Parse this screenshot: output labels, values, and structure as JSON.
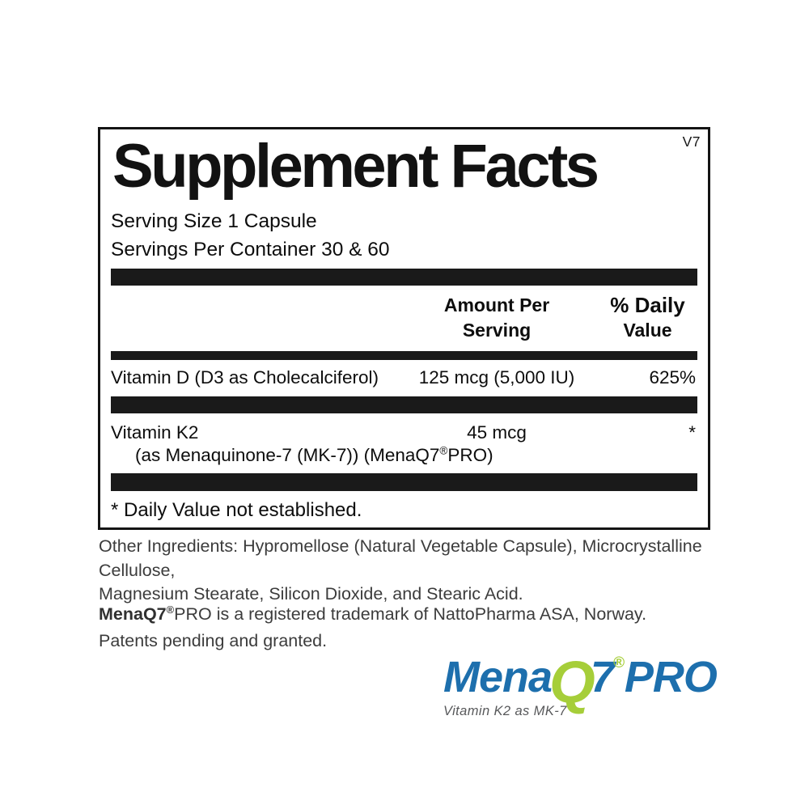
{
  "panel": {
    "version": "V7",
    "title": "Supplement Facts",
    "serving_size": "Serving Size 1 Capsule",
    "servings_per_container": "Servings Per Container 30 & 60",
    "bar_color": "#1a1a1a",
    "columns": {
      "amount_line1": "Amount Per",
      "amount_line2": "Serving",
      "dv_line1": "% Daily",
      "dv_line2": "Value"
    },
    "rows": [
      {
        "name": "Vitamin D (D3 as Cholecalciferol)",
        "amount": "125 mcg (5,000 IU)",
        "dv": "625%"
      },
      {
        "name": "Vitamin K2",
        "name_line2_pre": "(as Menaquinone-7 (MK-7)) (MenaQ7",
        "name_line2_reg": "®",
        "name_line2_post": "PRO)",
        "amount": "45 mcg",
        "dv": "*"
      }
    ],
    "footnote": "* Daily Value not established."
  },
  "other_ingredients": {
    "line1": "Other Ingredients: Hypromellose (Natural Vegetable Capsule), Microcrystalline Cellulose,",
    "line2": "Magnesium Stearate, Silicon Dioxide, and Stearic Acid."
  },
  "trademark": {
    "bold": "MenaQ7",
    "reg": "®",
    "rest": "PRO is a registered trademark of NattoPharma ASA, Norway.",
    "line2": "Patents pending and granted."
  },
  "logo": {
    "mena": "Mena",
    "q": "Q",
    "seven": "7",
    "reg": "®",
    "pro": "PRO",
    "tagline": "Vitamin K2 as MK-7",
    "blue": "#1d6fad",
    "green": "#a6ce39",
    "tagline_color": "#58595b"
  }
}
